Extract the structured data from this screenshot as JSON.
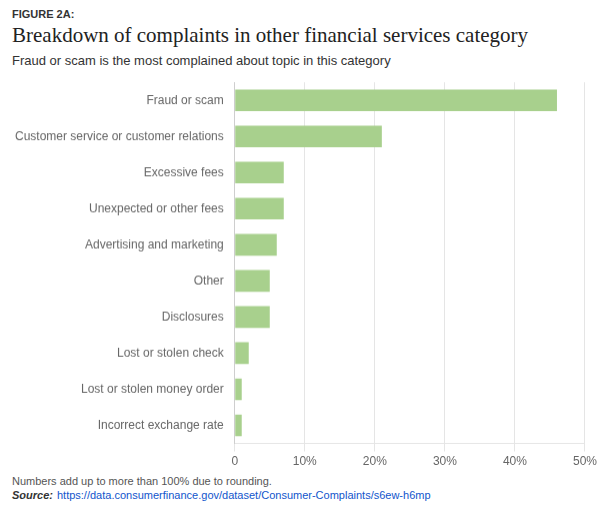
{
  "chart_data": {
    "type": "bar",
    "orientation": "horizontal",
    "figure_label": "FIGURE 2A:",
    "title": "Breakdown of complaints in other financial services category",
    "subtitle": "Fraud or scam is the most complained about topic in this category",
    "categories": [
      "Fraud or scam",
      "Customer service or customer relations",
      "Excessive fees",
      "Unexpected or other fees",
      "Advertising and marketing",
      "Other",
      "Disclosures",
      "Lost or stolen check",
      "Lost or stolen money order",
      "Incorrect exchange rate"
    ],
    "values": [
      46,
      21,
      7,
      7,
      6,
      5,
      5,
      2,
      1,
      1
    ],
    "color": "#a8d08d",
    "xlim": [
      0,
      50
    ],
    "xticks": [
      0,
      {
        "value": 10,
        "label": "10%"
      },
      {
        "value": 20,
        "label": "20%"
      },
      {
        "value": 30,
        "label": "30%"
      },
      {
        "value": 40,
        "label": "40%"
      },
      {
        "value": 50,
        "label": "50%"
      }
    ],
    "grid": true,
    "footnote": "Numbers add up to more than 100% due to rounding.",
    "source_label": "Source:",
    "source_url": "https://data.consumerfinance.gov/dataset/Consumer-Complaints/s6ew-h6mp",
    "source_url_color": "#1155cc"
  }
}
